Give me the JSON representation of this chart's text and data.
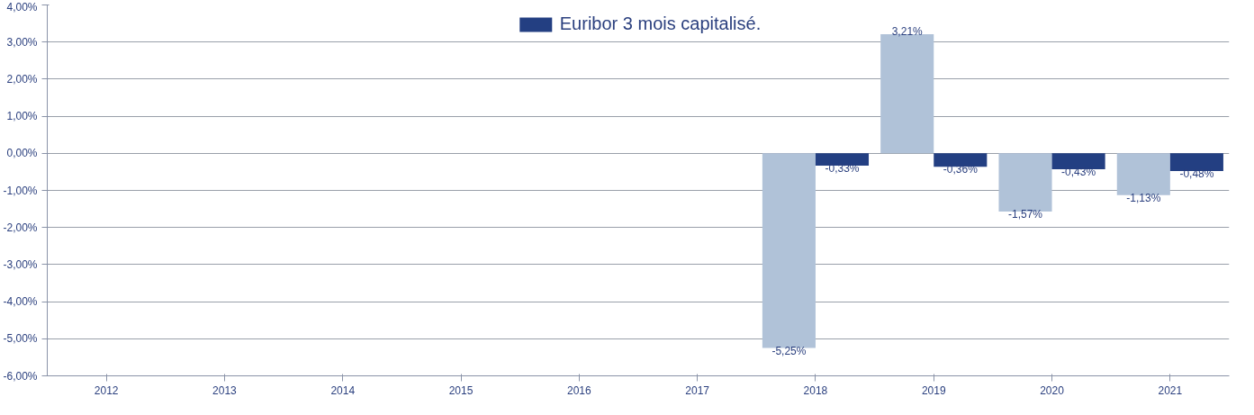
{
  "chart_data": {
    "type": "bar",
    "categories": [
      "2012",
      "2013",
      "2014",
      "2015",
      "2016",
      "2017",
      "2018",
      "2019",
      "2020",
      "2021"
    ],
    "series": [
      {
        "color": "#b0c2d8",
        "values": [
          null,
          null,
          null,
          null,
          null,
          null,
          -5.25,
          3.21,
          -1.57,
          -1.13
        ],
        "value_labels": [
          null,
          null,
          null,
          null,
          null,
          null,
          "-5,25%",
          "3,21%",
          "-1,57%",
          "-1,13%"
        ]
      },
      {
        "name": "Euribor 3 mois capitalisé.",
        "color": "#233f82",
        "values": [
          null,
          null,
          null,
          null,
          null,
          null,
          -0.33,
          -0.36,
          -0.43,
          -0.48
        ],
        "value_labels": [
          null,
          null,
          null,
          null,
          null,
          null,
          "-0,33%",
          "-0,36%",
          "-0,43%",
          "-0,48%"
        ]
      }
    ],
    "ylim": [
      -6,
      4
    ],
    "yticks": [
      {
        "value": 4,
        "label": "4,00%"
      },
      {
        "value": 3,
        "label": "3,00%"
      },
      {
        "value": 2,
        "label": "2,00%"
      },
      {
        "value": 1,
        "label": "1,00%"
      },
      {
        "value": 0,
        "label": "0,00%"
      },
      {
        "value": -1,
        "label": "-1,00%"
      },
      {
        "value": -2,
        "label": "-2,00%"
      },
      {
        "value": -3,
        "label": "-3,00%"
      },
      {
        "value": -4,
        "label": "-4,00%"
      },
      {
        "value": -5,
        "label": "-5,00%"
      },
      {
        "value": -6,
        "label": "-6,00%"
      }
    ],
    "grid": "y",
    "legend": "top"
  }
}
